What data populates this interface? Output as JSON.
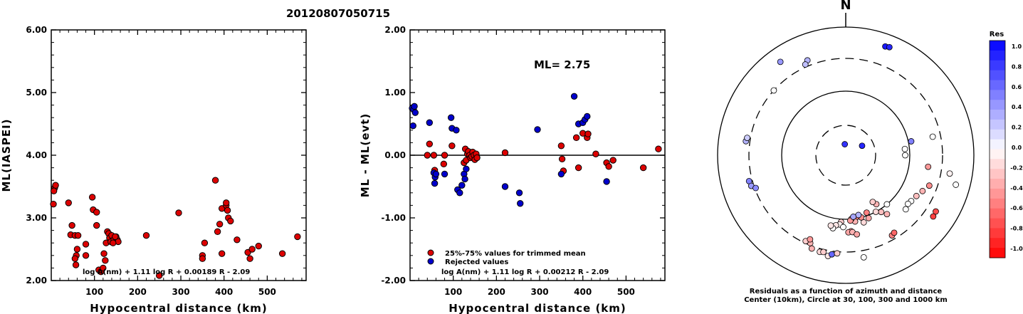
{
  "title": "20120807050715",
  "colors": {
    "trimmed": "#dd0000",
    "rejected": "#0000cc",
    "line": "#000000"
  },
  "chart_data": [
    {
      "type": "scatter",
      "ylabel": "ML(IASPEI)",
      "xlabel": "Hypocentral distance (km)",
      "xlim": [
        0,
        590
      ],
      "ylim": [
        2.0,
        6.0
      ],
      "xticks": [
        100,
        200,
        300,
        400,
        500
      ],
      "xtick_labels": [
        "100",
        "200",
        "300",
        "400",
        "500"
      ],
      "yticks": [
        2.0,
        3.0,
        4.0,
        5.0,
        6.0
      ],
      "ytick_labels": [
        "2.00",
        "3.00",
        "4.00",
        "5.00",
        "6.00"
      ],
      "formula": "log A(nm) + 1.11 log R + 0.00189 R - 2.09",
      "series": [
        {
          "color": "trimmed",
          "x": [
            5,
            8,
            10,
            6,
            45,
            40,
            48,
            55,
            60,
            58,
            55,
            57,
            62,
            80,
            80,
            95,
            97,
            105,
            105,
            110,
            115,
            120,
            122,
            125,
            127,
            130,
            133,
            135,
            138,
            140,
            145,
            150,
            153,
            155,
            143,
            148,
            220,
            250,
            295,
            350,
            350,
            355,
            380,
            385,
            390,
            395,
            395,
            405,
            405,
            408,
            410,
            415,
            430,
            455,
            460,
            465,
            480,
            535,
            570
          ],
          "y": [
            3.22,
            3.48,
            3.52,
            3.43,
            2.73,
            3.24,
            2.88,
            2.72,
            2.5,
            2.4,
            2.35,
            2.25,
            2.72,
            2.4,
            2.58,
            3.33,
            3.13,
            3.09,
            2.88,
            2.17,
            2.14,
            2.2,
            2.43,
            2.32,
            2.6,
            2.78,
            2.75,
            2.68,
            2.62,
            2.72,
            2.65,
            2.7,
            2.65,
            2.62,
            2.6,
            2.7,
            2.72,
            2.08,
            3.08,
            2.4,
            2.35,
            2.6,
            3.6,
            2.78,
            2.9,
            3.15,
            2.43,
            3.2,
            3.24,
            3.12,
            3.0,
            2.95,
            2.65,
            2.45,
            2.35,
            2.5,
            2.55,
            2.43,
            2.7
          ]
        }
      ]
    },
    {
      "type": "scatter",
      "ylabel": "ML - ML(evt)",
      "xlabel": "Hypocentral distance (km)",
      "xlim": [
        0,
        590
      ],
      "ylim": [
        -2.0,
        2.0
      ],
      "xticks": [
        100,
        200,
        300,
        400,
        500
      ],
      "xtick_labels": [
        "100",
        "200",
        "300",
        "400",
        "500"
      ],
      "yticks": [
        -2.0,
        -1.0,
        0.0,
        1.0,
        2.0
      ],
      "ytick_labels": [
        "-2.00",
        "-1.00",
        "0.00",
        "1.00",
        "2.00"
      ],
      "annotation": "ML= 2.75",
      "legend": [
        "25%-75% values for trimmed mean",
        "Rejected values"
      ],
      "formula": "log A(nm) + 1.11 log R + 0.00212 R - 2.09",
      "series": [
        {
          "color": "trimmed",
          "x": [
            40,
            45,
            55,
            57,
            78,
            80,
            97,
            125,
            128,
            130,
            133,
            135,
            138,
            140,
            143,
            145,
            148,
            150,
            153,
            155,
            220,
            350,
            352,
            355,
            385,
            390,
            400,
            410,
            412,
            430,
            455,
            460,
            470,
            540,
            575
          ],
          "y": [
            0.0,
            0.18,
            0.0,
            -0.24,
            -0.14,
            0.0,
            0.15,
            -0.12,
            0.1,
            -0.08,
            0.02,
            0.06,
            0.0,
            -0.04,
            -0.02,
            0.05,
            0.0,
            -0.07,
            0.02,
            -0.04,
            0.04,
            0.15,
            -0.06,
            -0.25,
            0.28,
            -0.2,
            0.35,
            0.28,
            0.34,
            0.02,
            -0.12,
            -0.18,
            -0.08,
            -0.2,
            0.1
          ]
        },
        {
          "color": "rejected",
          "x": [
            5,
            7,
            8,
            10,
            12,
            45,
            55,
            57,
            58,
            60,
            80,
            95,
            97,
            107,
            110,
            115,
            120,
            125,
            127,
            130,
            220,
            253,
            255,
            295,
            350,
            380,
            390,
            400,
            405,
            410,
            455
          ],
          "y": [
            0.75,
            0.47,
            0.73,
            0.78,
            0.68,
            0.52,
            -0.28,
            -0.45,
            -0.35,
            -0.3,
            -0.3,
            0.6,
            0.43,
            0.4,
            -0.55,
            -0.6,
            -0.48,
            -0.3,
            -0.38,
            -0.22,
            -0.5,
            -0.6,
            -0.77,
            0.41,
            -0.3,
            0.94,
            0.5,
            0.52,
            0.57,
            0.62,
            -0.42
          ]
        }
      ]
    },
    {
      "type": "polar-scatter",
      "north_label": "N",
      "caption": [
        "Residuals as a function of azimuth and distance",
        "Center (10km), Circle at 30, 100, 300 and 1000 km"
      ],
      "rings_km": [
        30,
        100,
        300,
        1000
      ],
      "colorbar_title": "Res",
      "colorbar_ticks": [
        "1.0",
        "0.8",
        "0.6",
        "0.4",
        "0.2",
        "0.0",
        "-0.2",
        "-0.4",
        "-0.6",
        "-0.8",
        "-1.0"
      ],
      "points": [
        {
          "az": -5,
          "d": 15,
          "res": 0.8
        },
        {
          "az": 60,
          "d": 20,
          "res": 0.85
        },
        {
          "az": 20,
          "d": 620,
          "res": 0.9
        },
        {
          "az": 22,
          "d": 640,
          "res": 0.85
        },
        {
          "az": -35,
          "d": 580,
          "res": 0.4
        },
        {
          "az": -22,
          "d": 370,
          "res": 0.3
        },
        {
          "az": -24,
          "d": 330,
          "res": 0.25
        },
        {
          "az": -48,
          "d": 300,
          "res": 0.0
        },
        {
          "az": -82,
          "d": 350,
          "res": 0.3
        },
        {
          "az": -80,
          "d": 340,
          "res": 0.2
        },
        {
          "az": -105,
          "d": 340,
          "res": 0.5
        },
        {
          "az": -108,
          "d": 330,
          "res": 0.4
        },
        {
          "az": -110,
          "d": 290,
          "res": 0.45
        },
        {
          "az": 78,
          "d": 110,
          "res": 0.5
        },
        {
          "az": 78,
          "d": 230,
          "res": 0.0
        },
        {
          "az": 84,
          "d": 85,
          "res": 0.0
        },
        {
          "az": 90,
          "d": 85,
          "res": 0.0
        },
        {
          "az": 100,
          "d": 420,
          "res": -0.05
        },
        {
          "az": 140,
          "d": 100,
          "res": 0.0
        },
        {
          "az": 145,
          "d": 130,
          "res": -0.3
        },
        {
          "az": 148,
          "d": 110,
          "res": -0.25
        },
        {
          "az": 152,
          "d": 100,
          "res": -0.15
        },
        {
          "az": 148,
          "d": 80,
          "res": -0.3
        },
        {
          "az": 150,
          "d": 70,
          "res": -0.2
        },
        {
          "az": 160,
          "d": 110,
          "res": -0.35
        },
        {
          "az": 165,
          "d": 120,
          "res": -0.15
        },
        {
          "az": 160,
          "d": 90,
          "res": -0.5
        },
        {
          "az": 166,
          "d": 100,
          "res": -0.45
        },
        {
          "az": 170,
          "d": 95,
          "res": -0.5
        },
        {
          "az": 172,
          "d": 110,
          "res": -0.3
        },
        {
          "az": 175,
          "d": 100,
          "res": -0.35
        },
        {
          "az": 176,
          "d": 105,
          "res": -0.4
        },
        {
          "az": 168,
          "d": 90,
          "res": 0.3
        },
        {
          "az": 173,
          "d": 93,
          "res": 0.35
        },
        {
          "az": -176,
          "d": 110,
          "res": -0.2
        },
        {
          "az": -175,
          "d": 120,
          "res": -0.05
        },
        {
          "az": -172,
          "d": 125,
          "res": -0.1
        },
        {
          "az": -178,
          "d": 130,
          "res": 0.0
        },
        {
          "az": -170,
          "d": 140,
          "res": -0.02
        },
        {
          "az": -168,
          "d": 130,
          "res": -0.1
        },
        {
          "az": 176,
          "d": 150,
          "res": -0.4
        },
        {
          "az": 178,
          "d": 155,
          "res": -0.35
        },
        {
          "az": 175,
          "d": 155,
          "res": -0.3
        },
        {
          "az": 172,
          "d": 170,
          "res": -0.35
        },
        {
          "az": -158,
          "d": 280,
          "res": -0.3
        },
        {
          "az": -155,
          "d": 280,
          "res": -0.2
        },
        {
          "az": -157,
          "d": 250,
          "res": -0.4
        },
        {
          "az": -160,
          "d": 330,
          "res": -0.3
        },
        {
          "az": -165,
          "d": 340,
          "res": -0.15
        },
        {
          "az": -167,
          "d": 330,
          "res": -0.2
        },
        {
          "az": -170,
          "d": 370,
          "res": -0.1
        },
        {
          "az": -172,
          "d": 340,
          "res": 0.6
        },
        {
          "az": -175,
          "d": 320,
          "res": -0.2
        },
        {
          "az": 170,
          "d": 390,
          "res": 0.0
        },
        {
          "az": 150,
          "d": 260,
          "res": -0.5
        },
        {
          "az": 148,
          "d": 250,
          "res": -0.6
        },
        {
          "az": 122,
          "d": 430,
          "res": -0.7
        },
        {
          "az": 125,
          "d": 440,
          "res": -0.75
        },
        {
          "az": 105,
          "d": 580,
          "res": 0.0
        },
        {
          "az": 98,
          "d": 190,
          "res": -0.4
        },
        {
          "az": 110,
          "d": 230,
          "res": -0.45
        },
        {
          "az": 115,
          "d": 200,
          "res": -0.3
        },
        {
          "az": 120,
          "d": 180,
          "res": -0.25
        },
        {
          "az": 125,
          "d": 170,
          "res": 0.0
        },
        {
          "az": 128,
          "d": 165,
          "res": 0.0
        },
        {
          "az": 132,
          "d": 175,
          "res": 0.0
        }
      ]
    }
  ]
}
